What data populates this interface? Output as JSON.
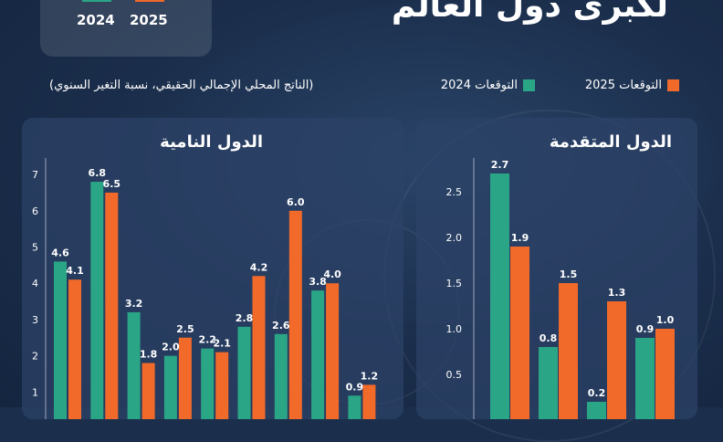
{
  "header": {
    "title": "لكبرى دول العالم",
    "year_a": "2024",
    "year_b": "2025",
    "subtitle": "(الناتج المحلي الإجمالي الحقيقي، نسبة التغير السنوي)",
    "legend_2025": "التوقعات 2025",
    "legend_2024": "التوقعات 2024"
  },
  "colors": {
    "series_2024": "#2aa687",
    "series_2025": "#f26a2a"
  },
  "chart_data": [
    {
      "type": "bar",
      "title": "الدول النامية",
      "ylim": [
        0,
        7
      ],
      "yticks": [
        1,
        2,
        3,
        4,
        5,
        6,
        7
      ],
      "series": [
        {
          "name": "التوقعات 2024",
          "values": [
            4.6,
            6.8,
            3.2,
            2.0,
            2.2,
            2.8,
            2.6,
            3.8,
            0.9
          ]
        },
        {
          "name": "التوقعات 2025",
          "values": [
            4.1,
            6.5,
            1.8,
            2.5,
            2.1,
            4.2,
            6.0,
            4.0,
            1.2
          ]
        }
      ]
    },
    {
      "type": "bar",
      "title": "الدول المتقدمة",
      "ylim": [
        0,
        2.7
      ],
      "yticks": [
        0.5,
        1.0,
        1.5,
        2.0,
        2.5
      ],
      "series": [
        {
          "name": "التوقعات 2024",
          "values": [
            2.7,
            0.8,
            0.2,
            0.9
          ]
        },
        {
          "name": "التوقعات 2025",
          "values": [
            1.9,
            1.5,
            1.3,
            1.0
          ]
        }
      ]
    }
  ]
}
